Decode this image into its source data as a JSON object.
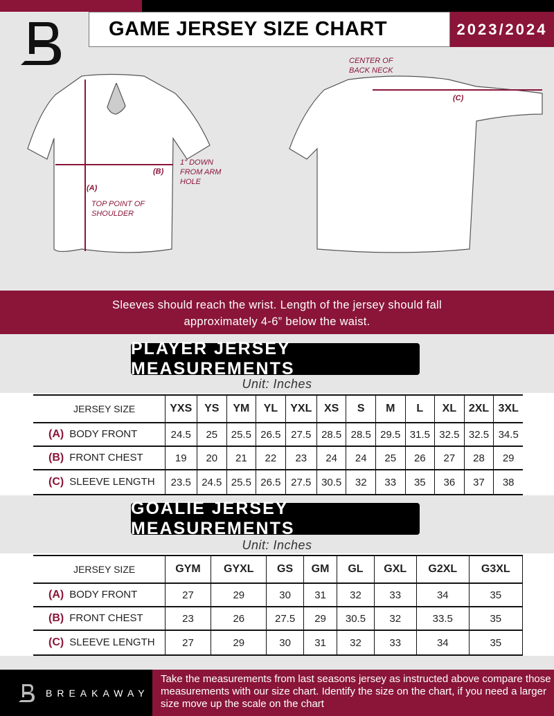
{
  "header": {
    "title": "GAME JERSEY SIZE CHART",
    "season": "2023/2024",
    "logo": "B"
  },
  "diagram": {
    "center_back_neck": "CENTER OF BACK NECK",
    "chest_note": "1\" DOWN FROM ARM HOLE",
    "shoulder_note": "TOP POINT OF SHOULDER",
    "label_a": "(A)",
    "label_b": "(B)",
    "label_c": "(C)"
  },
  "instructions": {
    "line1": "Sleeves should reach the wrist. Length of the jersey should fall",
    "line2": "approximately 4-6” below the waist."
  },
  "player": {
    "title": "PLAYER JERSEY MEASUREMENTS",
    "unit": "Unit: Inches",
    "size_label": "JERSEY SIZE",
    "sizes": [
      "YXS",
      "YS",
      "YM",
      "YL",
      "YXL",
      "XS",
      "S",
      "M",
      "L",
      "XL",
      "2XL",
      "3XL"
    ],
    "rows": [
      {
        "code": "(A)",
        "name": "BODY FRONT",
        "values": [
          "24.5",
          "25",
          "25.5",
          "26.5",
          "27.5",
          "28.5",
          "28.5",
          "29.5",
          "31.5",
          "32.5",
          "32.5",
          "34.5"
        ]
      },
      {
        "code": "(B)",
        "name": "FRONT CHEST",
        "values": [
          "19",
          "20",
          "21",
          "22",
          "23",
          "24",
          "24",
          "25",
          "26",
          "27",
          "28",
          "29"
        ]
      },
      {
        "code": "(C)",
        "name": "SLEEVE LENGTH",
        "values": [
          "23.5",
          "24.5",
          "25.5",
          "26.5",
          "27.5",
          "30.5",
          "32",
          "33",
          "35",
          "36",
          "37",
          "38"
        ]
      }
    ]
  },
  "goalie": {
    "title": "GOALIE JERSEY MEASUREMENTS",
    "unit": "Unit: Inches",
    "size_label": "JERSEY SIZE",
    "sizes": [
      "GYM",
      "GYXL",
      "GS",
      "GM",
      "GL",
      "GXL",
      "G2XL",
      "G3XL",
      ""
    ],
    "rows": [
      {
        "code": "(A)",
        "name": "BODY FRONT",
        "values": [
          "27",
          "29",
          "30",
          "31",
          "32",
          "33",
          "34",
          "35",
          ""
        ]
      },
      {
        "code": "(B)",
        "name": "FRONT CHEST",
        "values": [
          "23",
          "26",
          "27.5",
          "29",
          "30.5",
          "32",
          "33.5",
          "35",
          ""
        ]
      },
      {
        "code": "(C)",
        "name": "SLEEVE LENGTH",
        "values": [
          "27",
          "29",
          "30",
          "31",
          "32",
          "33",
          "34",
          "35",
          ""
        ]
      }
    ]
  },
  "footer": {
    "brand": "BREAKAWAY",
    "note": "Take the measurements from last seasons jersey as instructed above compare those measurements  with our size chart. Identify the size on the chart, if you need a larger size move up the scale on the chart"
  },
  "colors": {
    "accent": "#8a1538",
    "dark": "#000000",
    "background": "#e6e6e7"
  }
}
